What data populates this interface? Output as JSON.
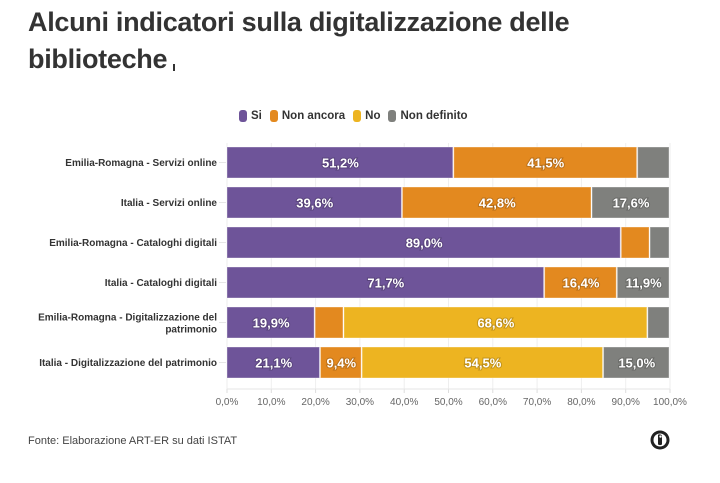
{
  "title": "Alcuni indicatori sulla digitalizzazione delle biblioteche",
  "footer": {
    "source": "Fonte: Elaborazione ART-ER su dati ISTAT",
    "brand_icon": "datawrapper-logo-icon"
  },
  "legend": [
    {
      "label": "Si",
      "color": "#6E5499"
    },
    {
      "label": "Non ancora",
      "color": "#E3891F"
    },
    {
      "label": "No",
      "color": "#EDB421"
    },
    {
      "label": "Non definito",
      "color": "#7F807D"
    }
  ],
  "chart_data": {
    "type": "bar",
    "orientation": "horizontal",
    "stacked": true,
    "title": "Alcuni indicatori sulla digitalizzazione delle biblioteche",
    "xlabel": "",
    "ylabel": "",
    "xlim": [
      0,
      100
    ],
    "x_ticks": [
      "0,0%",
      "10,0%",
      "20,0%",
      "30,0%",
      "40,0%",
      "50,0%",
      "60,0%",
      "70,0%",
      "80,0%",
      "90,0%",
      "100,0%"
    ],
    "grid": true,
    "legend_position": "top",
    "categories": [
      "Emilia-Romagna - Servizi online",
      "Italia - Servizi online",
      "Emilia-Romagna - Cataloghi digitali",
      "Italia - Cataloghi digitali",
      "Emilia-Romagna - Digitalizzazione del patrimonio",
      "Italia - Digitalizzazione del patrimonio"
    ],
    "series": [
      {
        "name": "Si",
        "color": "#6E5499",
        "values": [
          51.2,
          39.6,
          89.0,
          71.7,
          19.9,
          21.1
        ],
        "labels": [
          "51,2%",
          "39,6%",
          "89,0%",
          "71,7%",
          "19,9%",
          "21,1%"
        ]
      },
      {
        "name": "Non ancora",
        "color": "#E3891F",
        "values": [
          41.5,
          42.8,
          6.5,
          16.4,
          6.5,
          9.4
        ],
        "labels": [
          "41,5%",
          "42,8%",
          "",
          "16,4%",
          "",
          "9,4%"
        ]
      },
      {
        "name": "No",
        "color": "#EDB421",
        "values": [
          0,
          0,
          0,
          0,
          68.6,
          54.5
        ],
        "labels": [
          "",
          "",
          "",
          "",
          "68,6%",
          "54,5%"
        ]
      },
      {
        "name": "Non definito",
        "color": "#7F807D",
        "values": [
          7.3,
          17.6,
          4.5,
          11.9,
          5.0,
          15.0
        ],
        "labels": [
          "",
          "17,6%",
          "",
          "11,9%",
          "",
          "15,0%"
        ]
      }
    ]
  }
}
